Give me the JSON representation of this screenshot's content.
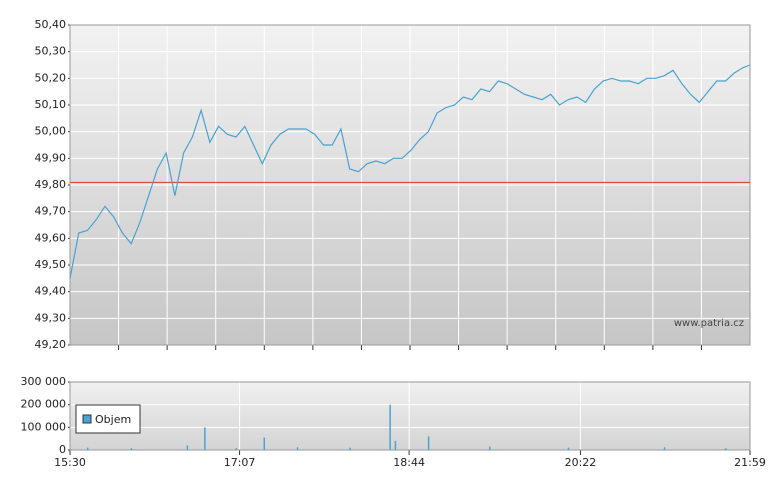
{
  "chart_data": [
    {
      "type": "line",
      "annotation": "www.patria.cz",
      "x": [
        "15:30",
        "15:35",
        "15:40",
        "15:45",
        "15:50",
        "15:55",
        "16:00",
        "16:05",
        "16:10",
        "16:15",
        "16:20",
        "16:25",
        "16:30",
        "16:35",
        "16:40",
        "16:45",
        "16:50",
        "16:55",
        "17:00",
        "17:05",
        "17:10",
        "17:15",
        "17:20",
        "17:25",
        "17:30",
        "17:35",
        "17:40",
        "17:45",
        "17:50",
        "17:55",
        "18:00",
        "18:05",
        "18:10",
        "18:15",
        "18:20",
        "18:25",
        "18:30",
        "18:35",
        "18:40",
        "18:45",
        "18:50",
        "18:55",
        "19:00",
        "19:05",
        "19:10",
        "19:15",
        "19:20",
        "19:25",
        "19:30",
        "19:35",
        "19:40",
        "19:45",
        "19:50",
        "19:55",
        "20:00",
        "20:05",
        "20:10",
        "20:15",
        "20:20",
        "20:25",
        "20:30",
        "20:35",
        "20:40",
        "20:45",
        "20:50",
        "20:55",
        "21:00",
        "21:05",
        "21:10",
        "21:15",
        "21:20",
        "21:25",
        "21:30",
        "21:35",
        "21:40",
        "21:45",
        "21:50",
        "21:55",
        "21:59"
      ],
      "values": [
        49.45,
        49.62,
        49.63,
        49.67,
        49.72,
        49.68,
        49.62,
        49.58,
        49.66,
        49.76,
        49.86,
        49.92,
        49.76,
        49.92,
        49.98,
        50.08,
        49.96,
        50.02,
        49.99,
        49.98,
        50.02,
        49.95,
        49.88,
        49.95,
        49.99,
        50.01,
        50.01,
        50.01,
        49.99,
        49.95,
        49.95,
        50.01,
        49.86,
        49.85,
        49.88,
        49.89,
        49.88,
        49.9,
        49.9,
        49.93,
        49.97,
        50.0,
        50.07,
        50.09,
        50.1,
        50.13,
        50.12,
        50.16,
        50.15,
        50.19,
        50.18,
        50.16,
        50.14,
        50.13,
        50.12,
        50.14,
        50.1,
        50.12,
        50.13,
        50.11,
        50.16,
        50.19,
        50.2,
        50.19,
        50.19,
        50.18,
        50.2,
        50.2,
        50.21,
        50.23,
        50.18,
        50.14,
        50.11,
        50.15,
        50.19,
        50.19,
        50.22,
        50.24,
        50.25
      ],
      "color": "#4aa3d0",
      "reference_line": {
        "value": 49.81,
        "color": "#e03030"
      },
      "xlim": [
        "15:30",
        "21:59"
      ],
      "ylim": [
        49.2,
        50.4
      ],
      "yticks": [
        {
          "value": 49.2,
          "label": "49,20"
        },
        {
          "value": 49.3,
          "label": "49,30"
        },
        {
          "value": 49.4,
          "label": "49,40"
        },
        {
          "value": 49.5,
          "label": "49,50"
        },
        {
          "value": 49.6,
          "label": "49,60"
        },
        {
          "value": 49.7,
          "label": "49,70"
        },
        {
          "value": 49.8,
          "label": "49,80"
        },
        {
          "value": 49.9,
          "label": "49,90"
        },
        {
          "value": 50.0,
          "label": "50,00"
        },
        {
          "value": 50.1,
          "label": "50,10"
        },
        {
          "value": 50.2,
          "label": "50,20"
        },
        {
          "value": 50.3,
          "label": "50,30"
        },
        {
          "value": 50.4,
          "label": "50,40"
        }
      ],
      "grid": true
    },
    {
      "type": "bar",
      "x": [
        "15:40",
        "16:05",
        "16:37",
        "16:47",
        "17:05",
        "17:21",
        "17:40",
        "18:10",
        "18:33",
        "18:36",
        "18:55",
        "19:30",
        "20:15",
        "21:10",
        "21:45"
      ],
      "series": [
        {
          "name": "Objem",
          "color": "#4aa3d0",
          "values": [
            10000,
            8000,
            20000,
            100000,
            8000,
            55000,
            12000,
            10000,
            200000,
            40000,
            60000,
            15000,
            10000,
            12000,
            8000
          ]
        }
      ],
      "xlim": [
        "15:30",
        "21:59"
      ],
      "xticks": [
        "15:30",
        "17:07",
        "18:44",
        "20:22",
        "21:59"
      ],
      "ylim": [
        0,
        300000
      ],
      "yticks": [
        {
          "value": 0,
          "label": "0"
        },
        {
          "value": 100000,
          "label": "100 000"
        },
        {
          "value": 200000,
          "label": "200 000"
        },
        {
          "value": 300000,
          "label": "300 000"
        }
      ],
      "grid": true
    }
  ]
}
